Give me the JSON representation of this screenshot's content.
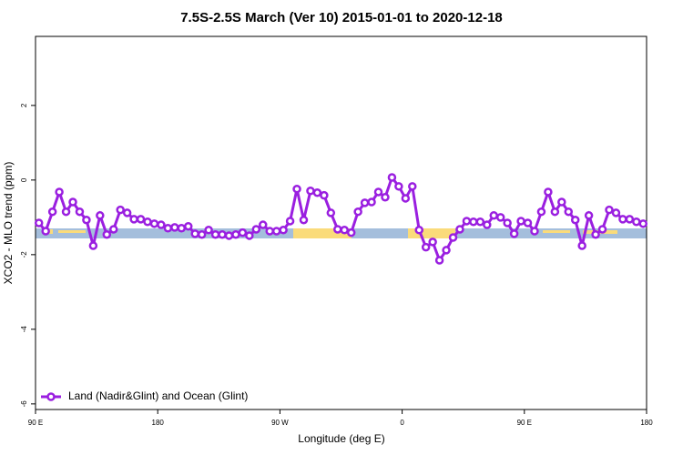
{
  "chart_data": {
    "type": "line",
    "title": "7.5S-2.5S March (Ver 10)   2015-01-01 to 2020-12-18",
    "x_label": "Longitude (deg E)",
    "y_label": "XCO2 - MLO trend (ppm)",
    "xlim": [
      90,
      540
    ],
    "xticks": [
      {
        "value": 90,
        "label": "90 E"
      },
      180,
      {
        "value": 270,
        "label": "90 W"
      },
      {
        "value": 360,
        "label": "0"
      },
      {
        "value": 450,
        "label": "90 E"
      },
      {
        "value": 540,
        "label": "180"
      }
    ],
    "ylim": [
      -6.15,
      3.85
    ],
    "yticks": [
      -6,
      -4,
      -2,
      0,
      2
    ],
    "legend": "bottom-left",
    "x": [
      92.5,
      97.5,
      102.5,
      107.5,
      112.5,
      117.5,
      122.5,
      127.5,
      132.5,
      137.5,
      142.5,
      147.5,
      152.5,
      157.5,
      162.5,
      167.5,
      172.5,
      177.5,
      182.5,
      187.5,
      192.5,
      197.5,
      202.5,
      207.5,
      212.5,
      217.5,
      222.5,
      227.5,
      232.5,
      237.5,
      242.5,
      247.5,
      252.5,
      257.5,
      262.5,
      267.5,
      272.5,
      277.5,
      282.5,
      287.5,
      292.5,
      297.5,
      302.5,
      307.5,
      312.5,
      317.5,
      322.5,
      327.5,
      332.5,
      337.5,
      342.5,
      347.5,
      352.5,
      357.5,
      362.5,
      367.5,
      372.5,
      377.5,
      382.5,
      387.5,
      392.5,
      397.5,
      402.5,
      407.5,
      412.5,
      417.5,
      422.5,
      427.5,
      432.5,
      437.5,
      442.5,
      447.5,
      452.5,
      457.5,
      462.5,
      467.5,
      472.5,
      477.5,
      482.5,
      487.5,
      492.5,
      497.5,
      502.5,
      507.5,
      512.5,
      517.5,
      522.5,
      527.5,
      532.5,
      537.5
    ],
    "series": [
      {
        "name": "Land (Nadir&Glint) and Ocean (Glint)",
        "color": "#9a1fe0",
        "values": [
          -1.15,
          -1.37,
          -0.85,
          -0.32,
          -0.85,
          -0.59,
          -0.85,
          -1.07,
          -1.76,
          -0.95,
          -1.46,
          -1.32,
          -0.8,
          -0.88,
          -1.05,
          -1.05,
          -1.12,
          -1.17,
          -1.2,
          -1.29,
          -1.27,
          -1.29,
          -1.24,
          -1.44,
          -1.46,
          -1.34,
          -1.46,
          -1.46,
          -1.49,
          -1.46,
          -1.41,
          -1.49,
          -1.32,
          -1.2,
          -1.37,
          -1.37,
          -1.34,
          -1.1,
          -0.24,
          -1.07,
          -0.29,
          -0.34,
          -0.41,
          -0.88,
          -1.32,
          -1.34,
          -1.41,
          -0.85,
          -0.61,
          -0.59,
          -0.32,
          -0.46,
          0.07,
          -0.17,
          -0.49,
          -0.17,
          -1.34,
          -1.8,
          -1.66,
          -2.15,
          -1.88,
          -1.54,
          -1.32,
          -1.1,
          -1.12,
          -1.12,
          -1.2,
          -0.95,
          -1.0,
          -1.15,
          -1.44,
          -1.1,
          -1.15,
          -1.37,
          -0.85,
          -0.32,
          -0.85,
          -0.59,
          -0.85,
          -1.07,
          -1.76,
          -0.95,
          -1.46,
          -1.32,
          -0.8,
          -0.88,
          -1.05,
          -1.05,
          -1.12,
          -1.17
        ]
      }
    ]
  }
}
